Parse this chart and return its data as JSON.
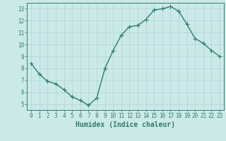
{
  "x": [
    0,
    1,
    2,
    3,
    4,
    5,
    6,
    7,
    8,
    9,
    10,
    11,
    12,
    13,
    14,
    15,
    16,
    17,
    18,
    19,
    20,
    21,
    22,
    23
  ],
  "y": [
    8.4,
    7.5,
    6.9,
    6.7,
    6.2,
    5.6,
    5.3,
    4.9,
    5.5,
    8.0,
    9.5,
    10.8,
    11.5,
    11.6,
    12.1,
    12.9,
    13.0,
    13.2,
    12.8,
    11.7,
    10.5,
    10.1,
    9.5,
    9.0
  ],
  "line_color": "#2e7d6e",
  "marker": "+",
  "marker_size": 4,
  "background_color": "#cce9e9",
  "grid_color": "#aad4d4",
  "xlabel": "Humidex (Indice chaleur)",
  "xlim": [
    -0.5,
    23.5
  ],
  "ylim": [
    4.5,
    13.5
  ],
  "yticks": [
    5,
    6,
    7,
    8,
    9,
    10,
    11,
    12,
    13
  ],
  "xticks": [
    0,
    1,
    2,
    3,
    4,
    5,
    6,
    7,
    8,
    9,
    10,
    11,
    12,
    13,
    14,
    15,
    16,
    17,
    18,
    19,
    20,
    21,
    22,
    23
  ],
  "tick_fontsize": 5.5,
  "xlabel_fontsize": 7,
  "line_width": 1.0
}
